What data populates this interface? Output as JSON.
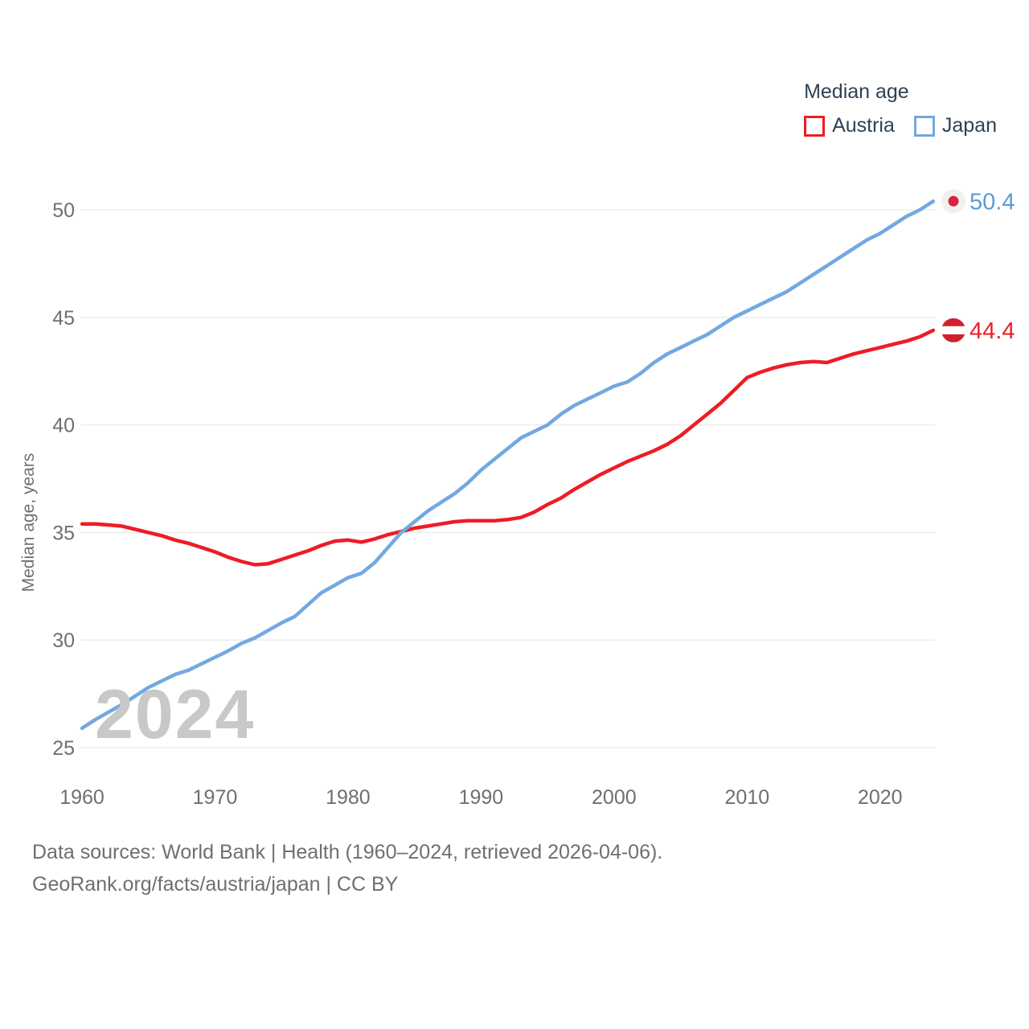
{
  "legend": {
    "title": "Median age"
  },
  "watermark": "2024",
  "footer": {
    "line1": "Data sources: World Bank | Health (1960–2024, retrieved 2026-04-06).",
    "line2": "GeoRank.org/facts/austria/japan | CC BY"
  },
  "chart_data": {
    "type": "line",
    "title": "Median age",
    "xlabel": "",
    "ylabel": "Median age, years",
    "x_range": [
      1960,
      2024
    ],
    "x_ticks": [
      1960,
      1970,
      1980,
      1990,
      2000,
      2010,
      2020
    ],
    "y_ticks": [
      25,
      30,
      35,
      40,
      45,
      50
    ],
    "ylim": [
      25,
      51
    ],
    "grid": true,
    "legend_position": "top-right",
    "series": [
      {
        "name": "Austria",
        "color": "#ee1c25",
        "label_color": "#ee1c25",
        "end_label": "44.4",
        "flag": "austria-flag-icon",
        "values": [
          35.4,
          35.4,
          35.35,
          35.3,
          35.15,
          35.0,
          34.85,
          34.65,
          34.5,
          34.3,
          34.1,
          33.85,
          33.65,
          33.5,
          33.55,
          33.75,
          33.95,
          34.15,
          34.4,
          34.6,
          34.65,
          34.55,
          34.7,
          34.9,
          35.05,
          35.2,
          35.3,
          35.4,
          35.5,
          35.55,
          35.55,
          35.55,
          35.6,
          35.7,
          35.95,
          36.3,
          36.6,
          37.0,
          37.35,
          37.7,
          38.0,
          38.3,
          38.55,
          38.8,
          39.1,
          39.5,
          40.0,
          40.5,
          41.0,
          41.6,
          42.2,
          42.45,
          42.65,
          42.8,
          42.9,
          42.95,
          42.9,
          43.1,
          43.3,
          43.45,
          43.6,
          43.75,
          43.9,
          44.1,
          44.4
        ]
      },
      {
        "name": "Japan",
        "color": "#73a8e1",
        "label_color": "#5b9bd8",
        "end_label": "50.4",
        "flag": "japan-flag-icon",
        "values": [
          25.9,
          26.3,
          26.65,
          27.0,
          27.4,
          27.8,
          28.1,
          28.4,
          28.6,
          28.9,
          29.2,
          29.5,
          29.85,
          30.1,
          30.45,
          30.8,
          31.1,
          31.65,
          32.2,
          32.55,
          32.9,
          33.1,
          33.6,
          34.3,
          35.0,
          35.5,
          36.0,
          36.4,
          36.8,
          37.3,
          37.9,
          38.4,
          38.9,
          39.4,
          39.7,
          40.0,
          40.5,
          40.9,
          41.2,
          41.5,
          41.8,
          42.0,
          42.4,
          42.9,
          43.3,
          43.6,
          43.9,
          44.2,
          44.6,
          45.0,
          45.3,
          45.6,
          45.9,
          46.2,
          46.6,
          47.0,
          47.4,
          47.8,
          48.2,
          48.6,
          48.9,
          49.3,
          49.7,
          50.0,
          50.4
        ]
      }
    ],
    "colors": {
      "grid": "#ebebeb",
      "tick_text": "#6f6f6f",
      "axis_title": "#6f6f6f",
      "austria_flag_red": "#d0202f",
      "japan_flag_red": "#dc2140",
      "japan_flag_bg": "#f0f0f0"
    }
  }
}
